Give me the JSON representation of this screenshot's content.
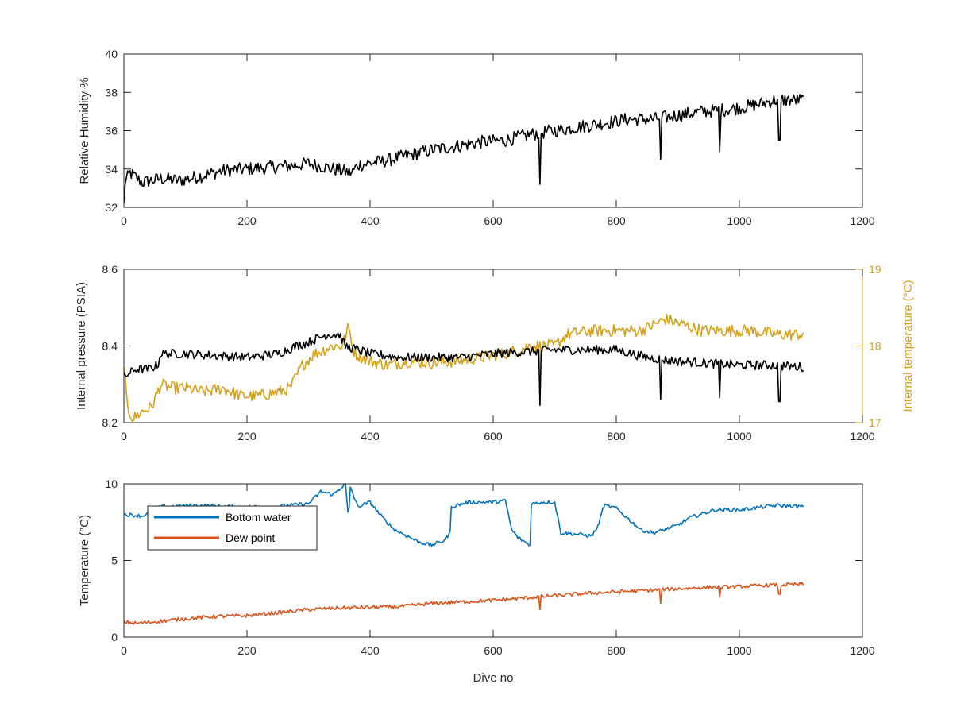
{
  "chart_data": [
    {
      "type": "line",
      "xlabel": "",
      "ylabel": "Relative Humidity %",
      "xlim": [
        0,
        1200
      ],
      "ylim": [
        32,
        40
      ],
      "xticks": [
        "0",
        "200",
        "400",
        "600",
        "800",
        "1000",
        "1200"
      ],
      "yticks": [
        "32",
        "34",
        "36",
        "38",
        "40"
      ],
      "grid": false,
      "series": [
        {
          "color": "#000000",
          "x": [
            0,
            10,
            30,
            60,
            90,
            120,
            160,
            200,
            240,
            280,
            300,
            340,
            370,
            380,
            420,
            460,
            500,
            540,
            580,
            620,
            660,
            700,
            740,
            780,
            820,
            860,
            900,
            940,
            980,
            1020,
            1060,
            1105
          ],
          "y": [
            33.2,
            33.8,
            33.3,
            33.5,
            33.4,
            33.6,
            33.9,
            34.0,
            34.1,
            34.2,
            34.3,
            34.0,
            33.8,
            34.2,
            34.4,
            34.7,
            35.0,
            35.2,
            35.4,
            35.5,
            35.8,
            36.0,
            36.2,
            36.4,
            36.6,
            36.6,
            36.8,
            37.0,
            37.1,
            37.3,
            37.6,
            37.6
          ],
          "spikes": [
            {
              "x": 0,
              "y": 32.2
            },
            {
              "x": 676,
              "y": 33.2
            },
            {
              "x": 872,
              "y": 34.5
            },
            {
              "x": 968,
              "y": 34.9
            },
            {
              "x": 1065,
              "y": 35.5
            }
          ]
        }
      ]
    },
    {
      "type": "line",
      "xlabel": "",
      "ylabel": "Internal pressure (PSIA)",
      "ylabel_right": "Internal temperature (°C)",
      "xlim": [
        0,
        1200
      ],
      "ylim": [
        8.2,
        8.6
      ],
      "ylim_right": [
        17,
        19
      ],
      "xticks": [
        "0",
        "200",
        "400",
        "600",
        "800",
        "1000",
        "1200"
      ],
      "yticks": [
        "8.2",
        "8.4",
        "8.6"
      ],
      "yticks_right": [
        "17",
        "18",
        "19"
      ],
      "grid": false,
      "series": [
        {
          "axis": "left",
          "color": "#000000",
          "x": [
            0,
            10,
            20,
            40,
            55,
            60,
            100,
            150,
            200,
            250,
            280,
            300,
            330,
            350,
            360,
            400,
            450,
            500,
            550,
            600,
            650,
            700,
            750,
            800,
            850,
            900,
            950,
            1000,
            1050,
            1105
          ],
          "y": [
            8.32,
            8.33,
            8.34,
            8.34,
            8.35,
            8.38,
            8.38,
            8.375,
            8.37,
            8.38,
            8.4,
            8.41,
            8.43,
            8.43,
            8.4,
            8.38,
            8.37,
            8.37,
            8.37,
            8.38,
            8.385,
            8.39,
            8.39,
            8.39,
            8.37,
            8.36,
            8.355,
            8.35,
            8.35,
            8.345
          ],
          "spikes": [
            {
              "x": 676,
              "y": 8.245
            },
            {
              "x": 872,
              "y": 8.26
            },
            {
              "x": 968,
              "y": 8.265
            },
            {
              "x": 1065,
              "y": 8.255
            }
          ]
        },
        {
          "axis": "right",
          "color": "#D4A017",
          "x": [
            0,
            5,
            15,
            30,
            45,
            60,
            80,
            100,
            130,
            160,
            190,
            220,
            250,
            270,
            290,
            310,
            340,
            355,
            365,
            375,
            400,
            430,
            460,
            500,
            540,
            580,
            620,
            660,
            700,
            720,
            760,
            800,
            840,
            880,
            900,
            940,
            980,
            1020,
            1060,
            1105
          ],
          "y": [
            17.8,
            17.2,
            17.05,
            17.15,
            17.2,
            17.5,
            17.45,
            17.45,
            17.4,
            17.45,
            17.35,
            17.35,
            17.4,
            17.45,
            17.75,
            17.9,
            18.0,
            18.0,
            18.25,
            17.9,
            17.8,
            17.75,
            17.8,
            17.78,
            17.8,
            17.85,
            17.9,
            18.0,
            18.0,
            18.15,
            18.2,
            18.2,
            18.2,
            18.35,
            18.3,
            18.2,
            18.2,
            18.2,
            18.15,
            18.15
          ]
        }
      ]
    },
    {
      "type": "line",
      "xlabel": "Dive no",
      "ylabel": "Temperature (°C)",
      "xlim": [
        0,
        1200
      ],
      "ylim": [
        0,
        10
      ],
      "xticks": [
        "0",
        "200",
        "400",
        "600",
        "800",
        "1000",
        "1200"
      ],
      "yticks": [
        "0",
        "5",
        "10"
      ],
      "grid": false,
      "legend": "top-left",
      "series": [
        {
          "name": "Bottom water",
          "color": "#0072BD",
          "x": [
            0,
            30,
            60,
            120,
            180,
            240,
            300,
            320,
            340,
            360,
            365,
            368,
            380,
            400,
            420,
            440,
            460,
            480,
            500,
            520,
            530,
            532,
            560,
            600,
            620,
            630,
            640,
            660,
            662,
            680,
            700,
            710,
            712,
            740,
            760,
            770,
            780,
            800,
            840,
            860,
            870,
            900,
            920,
            960,
            1000,
            1060,
            1105
          ],
          "y": [
            8.0,
            7.9,
            8.5,
            8.6,
            8.5,
            8.5,
            8.7,
            9.5,
            9.3,
            10.0,
            7.6,
            9.8,
            8.5,
            8.8,
            7.8,
            7.0,
            6.6,
            6.2,
            6.0,
            6.3,
            6.8,
            8.5,
            8.8,
            8.8,
            8.9,
            7.0,
            6.5,
            6.0,
            8.7,
            8.8,
            8.8,
            6.8,
            6.8,
            6.7,
            6.6,
            7.2,
            8.6,
            8.4,
            7.0,
            6.8,
            6.9,
            7.3,
            7.8,
            8.3,
            8.3,
            8.6,
            8.5
          ]
        },
        {
          "name": "Dew point",
          "color": "#D95319",
          "x": [
            0,
            20,
            50,
            100,
            150,
            200,
            250,
            300,
            350,
            400,
            450,
            500,
            550,
            600,
            650,
            700,
            750,
            800,
            850,
            900,
            950,
            1000,
            1050,
            1105
          ],
          "y": [
            1.0,
            0.9,
            1.0,
            1.2,
            1.35,
            1.4,
            1.6,
            1.8,
            1.9,
            1.95,
            2.0,
            2.2,
            2.3,
            2.4,
            2.55,
            2.7,
            2.85,
            2.95,
            3.05,
            3.15,
            3.25,
            3.3,
            3.4,
            3.45
          ],
          "spikes": [
            {
              "x": 676,
              "y": 1.8
            },
            {
              "x": 872,
              "y": 2.2
            },
            {
              "x": 968,
              "y": 2.6
            },
            {
              "x": 1065,
              "y": 2.8
            }
          ]
        }
      ]
    }
  ]
}
